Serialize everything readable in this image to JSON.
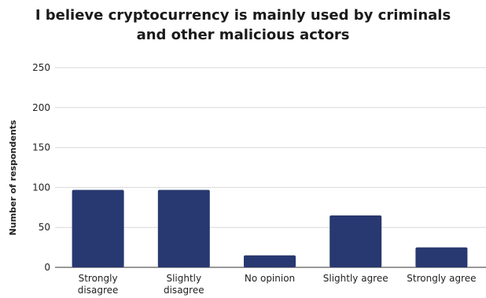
{
  "chart_data": {
    "type": "bar",
    "title_lines": [
      "I believe cryptocurrency is mainly used by criminals",
      "and other malicious actors"
    ],
    "ylabel": "Number of respondents",
    "xlabel": "",
    "categories": [
      [
        "Strongly",
        "disagree"
      ],
      [
        "Slightly",
        "disagree"
      ],
      [
        "No opinion"
      ],
      [
        "Slightly agree"
      ],
      [
        "Strongly agree"
      ]
    ],
    "values": [
      97,
      97,
      15,
      65,
      25
    ],
    "ylim": [
      0,
      250
    ],
    "yticks": [
      "0",
      "50",
      "100",
      "150",
      "200",
      "250"
    ],
    "bar_color": "#283870",
    "grid": true,
    "legend": "none"
  }
}
